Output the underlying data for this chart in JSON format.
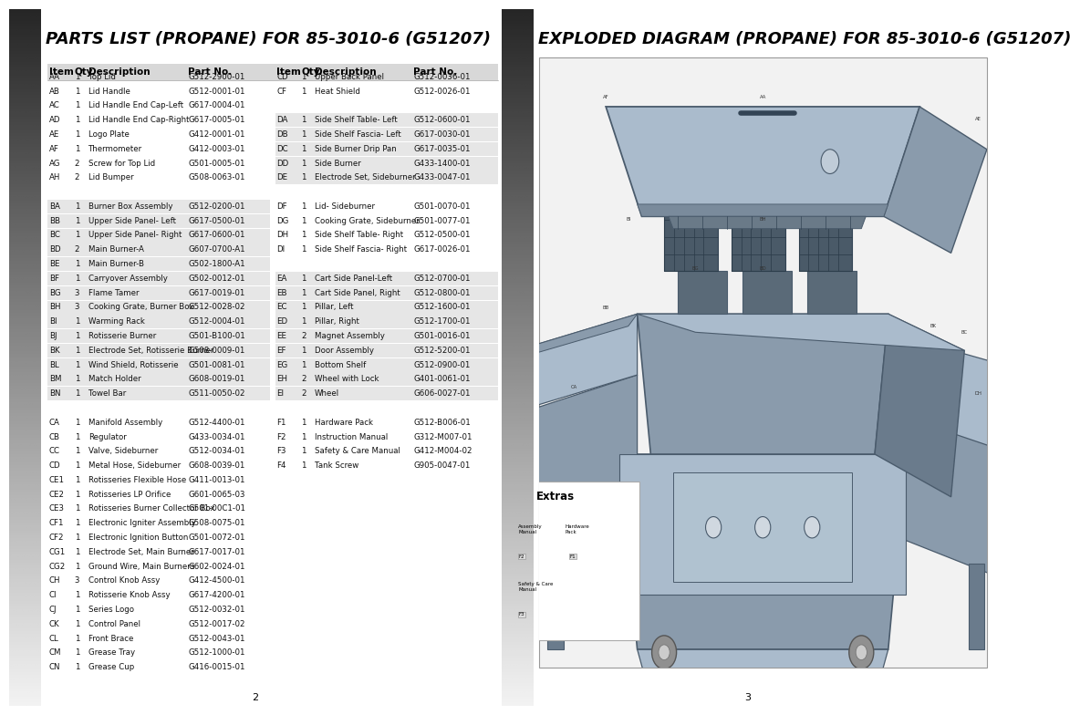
{
  "left_title": "PARTS LIST (PROPANE) FOR 85-3010-6 (G51207)",
  "right_title": "EXPLODED DIAGRAM (PROPANE) FOR 85-3010-6 (G51207)",
  "page_left": "2",
  "page_right": "3",
  "left_table": [
    [
      "AA",
      "1",
      "Top Lid",
      "G512-2900-01"
    ],
    [
      "AB",
      "1",
      "Lid Handle",
      "G512-0001-01"
    ],
    [
      "AC",
      "1",
      "Lid Handle End Cap-Left",
      "G617-0004-01"
    ],
    [
      "AD",
      "1",
      "Lid Handle End Cap-Right",
      "G617-0005-01"
    ],
    [
      "AE",
      "1",
      "Logo Plate",
      "G412-0001-01"
    ],
    [
      "AF",
      "1",
      "Thermometer",
      "G412-0003-01"
    ],
    [
      "AG",
      "2",
      "Screw for Top Lid",
      "G501-0005-01"
    ],
    [
      "AH",
      "2",
      "Lid Bumper",
      "G508-0063-01"
    ],
    [
      "",
      "",
      "",
      ""
    ],
    [
      "BA",
      "1",
      "Burner Box Assembly",
      "G512-0200-01"
    ],
    [
      "BB",
      "1",
      "Upper Side Panel- Left",
      "G617-0500-01"
    ],
    [
      "BC",
      "1",
      "Upper Side Panel- Right",
      "G617-0600-01"
    ],
    [
      "BD",
      "2",
      "Main Burner-A",
      "G607-0700-A1"
    ],
    [
      "BE",
      "1",
      "Main Burner-B",
      "G502-1800-A1"
    ],
    [
      "BF",
      "1",
      "Carryover Assembly",
      "G502-0012-01"
    ],
    [
      "BG",
      "3",
      "Flame Tamer",
      "G617-0019-01"
    ],
    [
      "BH",
      "3",
      "Cooking Grate, Burner Box",
      "G512-0028-02"
    ],
    [
      "BI",
      "1",
      "Warming Rack",
      "G512-0004-01"
    ],
    [
      "BJ",
      "1",
      "Rotisserie Burner",
      "G501-B100-01"
    ],
    [
      "BK",
      "1",
      "Electrode Set, Rotisserie Burner",
      "G508-0009-01"
    ],
    [
      "BL",
      "1",
      "Wind Shield, Rotisserie",
      "G501-0081-01"
    ],
    [
      "BM",
      "1",
      "Match Holder",
      "G608-0019-01"
    ],
    [
      "BN",
      "1",
      "Towel Bar",
      "G511-0050-02"
    ],
    [
      "",
      "",
      "",
      ""
    ],
    [
      "CA",
      "1",
      "Manifold Assembly",
      "G512-4400-01"
    ],
    [
      "CB",
      "1",
      "Regulator",
      "G433-0034-01"
    ],
    [
      "CC",
      "1",
      "Valve, Sideburner",
      "G512-0034-01"
    ],
    [
      "CD",
      "1",
      "Metal Hose, Sideburner",
      "G608-0039-01"
    ],
    [
      "CE1",
      "1",
      "Rotisseries Flexible Hose",
      "G411-0013-01"
    ],
    [
      "CE2",
      "1",
      "Rotisseries LP Orifice",
      "G601-0065-03"
    ],
    [
      "CE3",
      "1",
      "Rotisseries Burner Collector Box",
      "G501-00C1-01"
    ],
    [
      "CF1",
      "1",
      "Electronic Igniter Assembly",
      "G508-0075-01"
    ],
    [
      "CF2",
      "1",
      "Electronic Ignition Button",
      "G501-0072-01"
    ],
    [
      "CG1",
      "1",
      "Electrode Set, Main Burner",
      "G617-0017-01"
    ],
    [
      "CG2",
      "1",
      "Ground Wire, Main Burners",
      "G602-0024-01"
    ],
    [
      "CH",
      "3",
      "Control Knob Assy",
      "G412-4500-01"
    ],
    [
      "CI",
      "1",
      "Rotisserie Knob Assy",
      "G617-4200-01"
    ],
    [
      "CJ",
      "1",
      "Series Logo",
      "G512-0032-01"
    ],
    [
      "CK",
      "1",
      "Control Panel",
      "G512-0017-02"
    ],
    [
      "CL",
      "1",
      "Front Brace",
      "G512-0043-01"
    ],
    [
      "CM",
      "1",
      "Grease Tray",
      "G512-1000-01"
    ],
    [
      "CN",
      "1",
      "Grease Cup",
      "G416-0015-01"
    ]
  ],
  "right_table": [
    [
      "CD",
      "1",
      "Upper Back Panel",
      "G512-0036-01"
    ],
    [
      "CF",
      "1",
      "Heat Shield",
      "G512-0026-01"
    ],
    [
      "",
      "",
      "",
      ""
    ],
    [
      "DA",
      "1",
      "Side Shelf Table- Left",
      "G512-0600-01"
    ],
    [
      "DB",
      "1",
      "Side Shelf Fascia- Left",
      "G617-0030-01"
    ],
    [
      "DC",
      "1",
      "Side Burner Drip Pan",
      "G617-0035-01"
    ],
    [
      "DD",
      "1",
      "Side Burner",
      "G433-1400-01"
    ],
    [
      "DE",
      "1",
      "Electrode Set, Sideburner",
      "G433-0047-01"
    ],
    [
      "",
      "",
      "",
      ""
    ],
    [
      "DF",
      "1",
      "Lid- Sideburner",
      "G501-0070-01"
    ],
    [
      "DG",
      "1",
      "Cooking Grate, Sideburner",
      "G501-0077-01"
    ],
    [
      "DH",
      "1",
      "Side Shelf Table- Right",
      "G512-0500-01"
    ],
    [
      "DI",
      "1",
      "Side Shelf Fascia- Right",
      "G617-0026-01"
    ],
    [
      "",
      "",
      "",
      ""
    ],
    [
      "EA",
      "1",
      "Cart Side Panel-Left",
      "G512-0700-01"
    ],
    [
      "EB",
      "1",
      "Cart Side Panel, Right",
      "G512-0800-01"
    ],
    [
      "EC",
      "1",
      "Pillar, Left",
      "G512-1600-01"
    ],
    [
      "ED",
      "1",
      "Pillar, Right",
      "G512-1700-01"
    ],
    [
      "EE",
      "2",
      "Magnet Assembly",
      "G501-0016-01"
    ],
    [
      "EF",
      "1",
      "Door Assembly",
      "G512-5200-01"
    ],
    [
      "EG",
      "1",
      "Bottom Shelf",
      "G512-0900-01"
    ],
    [
      "EH",
      "2",
      "Wheel with Lock",
      "G401-0061-01"
    ],
    [
      "EI",
      "2",
      "Wheel",
      "G606-0027-01"
    ],
    [
      "",
      "",
      "",
      ""
    ],
    [
      "F1",
      "1",
      "Hardware Pack",
      "G512-B006-01"
    ],
    [
      "F2",
      "1",
      "Instruction Manual",
      "G312-M007-01"
    ],
    [
      "F3",
      "1",
      "Safety & Care Manual",
      "G412-M004-02"
    ],
    [
      "F4",
      "1",
      "Tank Screw",
      "G905-0047-01"
    ]
  ],
  "title_font_size": 13,
  "header_font_size": 7.5,
  "body_font_size": 6.2
}
